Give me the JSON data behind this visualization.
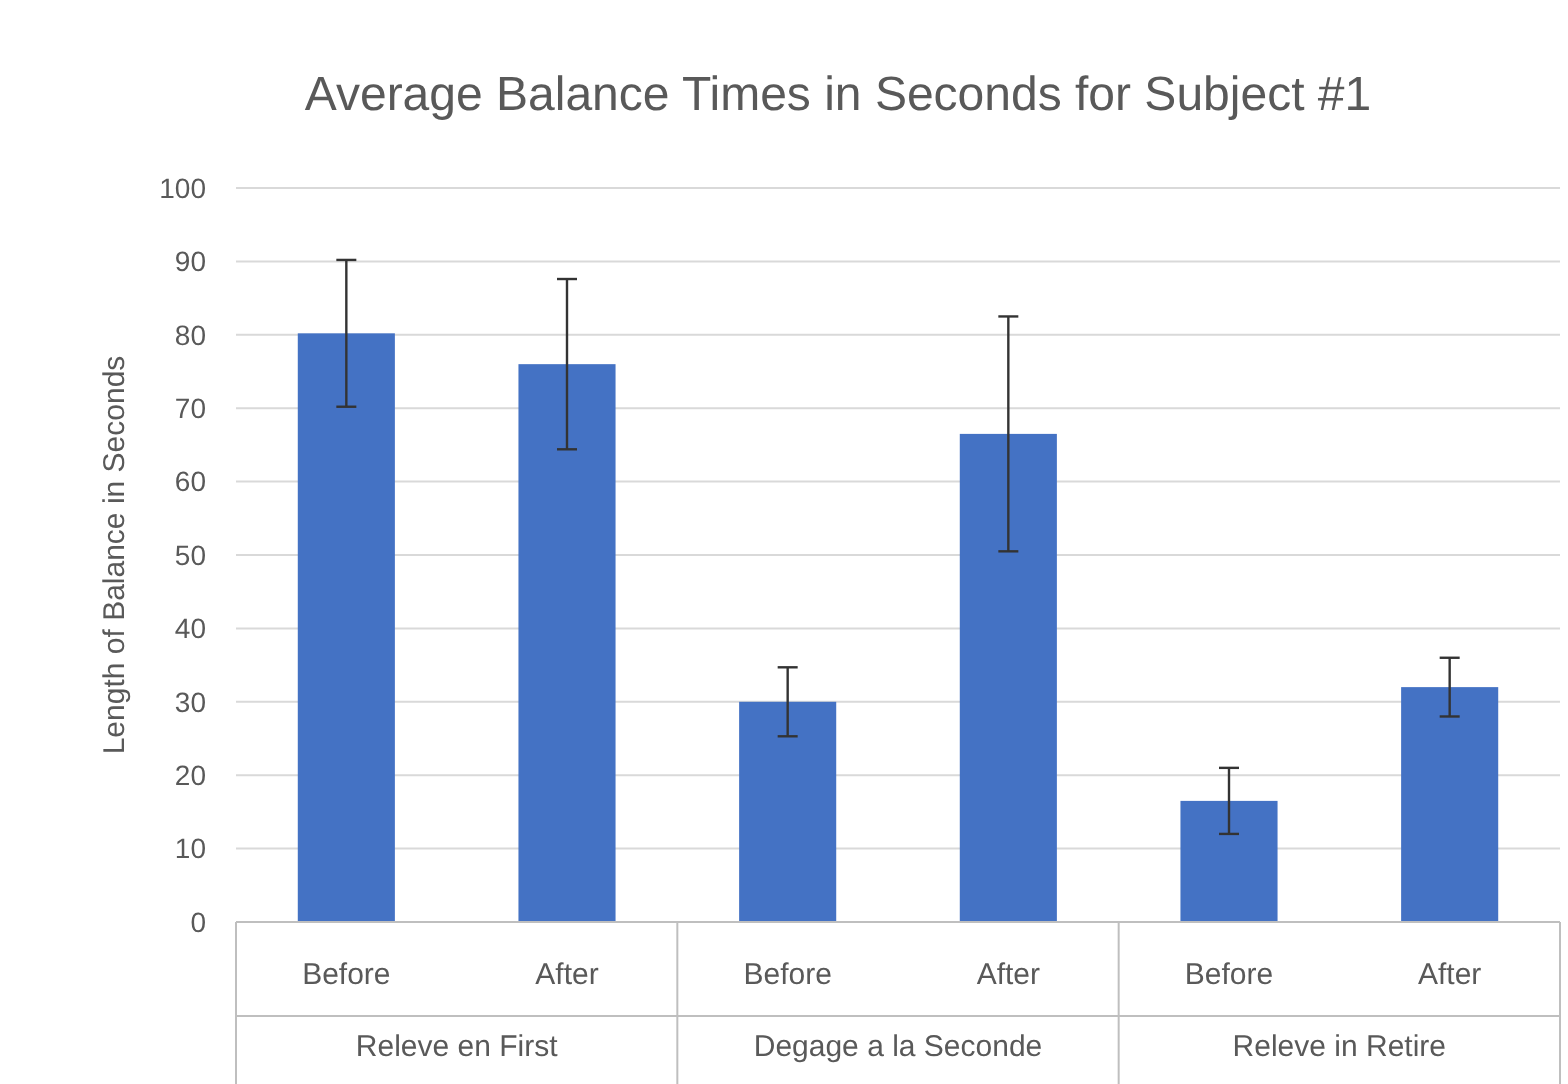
{
  "chart_data": {
    "type": "bar",
    "title": "Average Balance Times in Seconds for Subject #1",
    "ylabel": "Length of Balance in Seconds",
    "categories": [
      "Before",
      "After",
      "Before",
      "After",
      "Before",
      "After"
    ],
    "values": [
      80.2,
      76,
      30,
      66.5,
      16.5,
      32
    ],
    "errors": [
      10,
      11.6,
      4.7,
      16,
      4.5,
      4
    ],
    "color": "#4472c4",
    "ylim": [
      0,
      100
    ],
    "yticks": [
      0,
      10,
      20,
      30,
      40,
      50,
      60,
      70,
      80,
      90,
      100
    ],
    "grid": "y",
    "annotations": [
      "Releve en First",
      "Degage a la Seconde",
      "Releve in Retire"
    ]
  }
}
